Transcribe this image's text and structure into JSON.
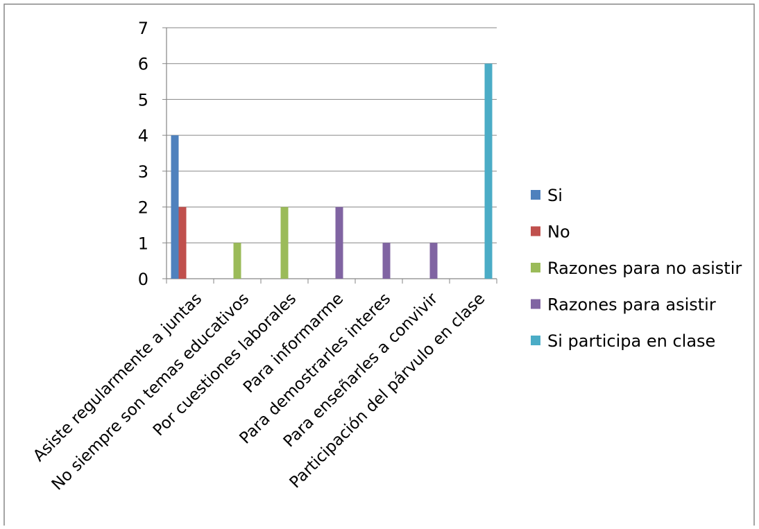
{
  "chart_data": {
    "type": "bar",
    "title": "",
    "xlabel": "",
    "ylabel": "",
    "ylim": [
      0,
      7
    ],
    "yticks": [
      0,
      1,
      2,
      3,
      4,
      5,
      6,
      7
    ],
    "grid": true,
    "legend_position": "right",
    "categories": [
      "Asiste regularmente a juntas",
      "No siempre son temas educativos",
      "Por cuestiones laborales",
      "Para informarme",
      "Para demostrarles interes",
      "Para enseñarles a convivir",
      "Participación del párvulo en clase"
    ],
    "series": [
      {
        "name": "Si",
        "color": "#4F81BD",
        "values": [
          4,
          null,
          null,
          null,
          null,
          null,
          null
        ]
      },
      {
        "name": "No",
        "color": "#C0504D",
        "values": [
          2,
          null,
          null,
          null,
          null,
          null,
          null
        ]
      },
      {
        "name": "Razones para no asistir",
        "color": "#9BBB59",
        "values": [
          null,
          1,
          2,
          null,
          null,
          null,
          null
        ]
      },
      {
        "name": "Razones para asistir",
        "color": "#8064A2",
        "values": [
          null,
          null,
          null,
          2,
          1,
          1,
          null
        ]
      },
      {
        "name": "Si participa en clase",
        "color": "#4BACC6",
        "values": [
          null,
          null,
          null,
          null,
          null,
          null,
          6
        ]
      }
    ]
  }
}
